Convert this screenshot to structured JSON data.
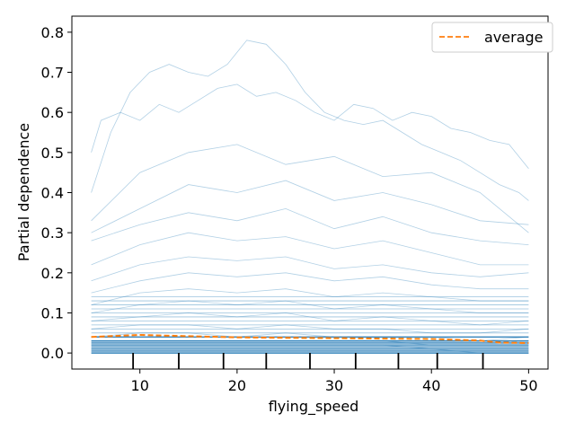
{
  "chart_data": {
    "type": "line",
    "title": "",
    "xlabel": "flying_speed",
    "ylabel": "Partial dependence",
    "xlim": [
      3.0,
      52.0
    ],
    "ylim": [
      -0.04,
      0.84
    ],
    "x_ticks": [
      10,
      20,
      30,
      40,
      50
    ],
    "y_ticks": [
      0.0,
      0.1,
      0.2,
      0.3,
      0.4,
      0.5,
      0.6,
      0.7,
      0.8
    ],
    "grid": false,
    "legend": {
      "position": "upper right",
      "entries": [
        "average"
      ]
    },
    "colors": {
      "ice": "#1f77b4",
      "average": "#ff7f0e",
      "axes": "#000000"
    },
    "rug_x": [
      9.3,
      14.0,
      18.6,
      23.0,
      27.5,
      32.2,
      36.6,
      40.6,
      45.3
    ],
    "series": [
      {
        "name": "average",
        "style": "dashed",
        "x": [
          5,
          10,
          15,
          20,
          25,
          30,
          35,
          40,
          45,
          47,
          50
        ],
        "values": [
          0.04,
          0.045,
          0.042,
          0.039,
          0.038,
          0.037,
          0.036,
          0.035,
          0.031,
          0.026,
          0.025
        ]
      }
    ],
    "ice_curves": [
      {
        "x": [
          5,
          6,
          8,
          10,
          12,
          14,
          16,
          18,
          20,
          22,
          24,
          26,
          28,
          30,
          32,
          34,
          36,
          38,
          40,
          42,
          44,
          46,
          48,
          50
        ],
        "values": [
          0.5,
          0.58,
          0.6,
          0.58,
          0.62,
          0.6,
          0.63,
          0.66,
          0.67,
          0.64,
          0.65,
          0.63,
          0.6,
          0.58,
          0.62,
          0.61,
          0.58,
          0.6,
          0.59,
          0.56,
          0.55,
          0.53,
          0.52,
          0.46
        ]
      },
      {
        "x": [
          5,
          7,
          9,
          11,
          13,
          15,
          17,
          19,
          21,
          23,
          25,
          27,
          29,
          31,
          33,
          35,
          37,
          39,
          41,
          43,
          45,
          47,
          49,
          50
        ],
        "values": [
          0.4,
          0.55,
          0.65,
          0.7,
          0.72,
          0.7,
          0.69,
          0.72,
          0.78,
          0.77,
          0.72,
          0.65,
          0.6,
          0.58,
          0.57,
          0.58,
          0.55,
          0.52,
          0.5,
          0.48,
          0.45,
          0.42,
          0.4,
          0.38
        ]
      },
      {
        "x": [
          5,
          10,
          15,
          20,
          25,
          30,
          35,
          40,
          45,
          50
        ],
        "values": [
          0.33,
          0.45,
          0.5,
          0.52,
          0.47,
          0.49,
          0.44,
          0.45,
          0.4,
          0.3
        ]
      },
      {
        "x": [
          5,
          10,
          15,
          20,
          25,
          30,
          35,
          40,
          45,
          50
        ],
        "values": [
          0.3,
          0.36,
          0.42,
          0.4,
          0.43,
          0.38,
          0.4,
          0.37,
          0.33,
          0.32
        ]
      },
      {
        "x": [
          5,
          10,
          15,
          20,
          25,
          30,
          35,
          40,
          45,
          50
        ],
        "values": [
          0.28,
          0.32,
          0.35,
          0.33,
          0.36,
          0.31,
          0.34,
          0.3,
          0.28,
          0.27
        ]
      },
      {
        "x": [
          5,
          10,
          15,
          20,
          25,
          30,
          35,
          40,
          45,
          50
        ],
        "values": [
          0.22,
          0.27,
          0.3,
          0.28,
          0.29,
          0.26,
          0.28,
          0.25,
          0.22,
          0.22
        ]
      },
      {
        "x": [
          5,
          10,
          15,
          20,
          25,
          30,
          35,
          40,
          45,
          50
        ],
        "values": [
          0.18,
          0.22,
          0.24,
          0.23,
          0.24,
          0.21,
          0.22,
          0.2,
          0.19,
          0.2
        ]
      },
      {
        "x": [
          5,
          10,
          15,
          20,
          25,
          30,
          35,
          40,
          45,
          50
        ],
        "values": [
          0.15,
          0.18,
          0.2,
          0.19,
          0.2,
          0.18,
          0.19,
          0.17,
          0.16,
          0.16
        ]
      },
      {
        "x": [
          5,
          10,
          15,
          20,
          25,
          30,
          35,
          40,
          45,
          50
        ],
        "values": [
          0.12,
          0.15,
          0.16,
          0.15,
          0.16,
          0.14,
          0.15,
          0.14,
          0.13,
          0.13
        ]
      },
      {
        "x": [
          5,
          10,
          15,
          20,
          25,
          30,
          35,
          40,
          45,
          50
        ],
        "values": [
          0.1,
          0.12,
          0.13,
          0.12,
          0.13,
          0.11,
          0.12,
          0.11,
          0.1,
          0.1
        ]
      },
      {
        "x": [
          5,
          10,
          15,
          20,
          25,
          30,
          35,
          40,
          45,
          50
        ],
        "values": [
          0.08,
          0.09,
          0.1,
          0.09,
          0.1,
          0.08,
          0.09,
          0.08,
          0.07,
          0.08
        ]
      },
      {
        "x": [
          5,
          10,
          15,
          20,
          25,
          30,
          35,
          40,
          45,
          50
        ],
        "values": [
          0.06,
          0.07,
          0.07,
          0.06,
          0.07,
          0.06,
          0.06,
          0.05,
          0.05,
          0.06
        ]
      },
      {
        "x": [
          5,
          10,
          15,
          20,
          25,
          30,
          35,
          40,
          45,
          50
        ],
        "values": [
          0.04,
          0.05,
          0.05,
          0.04,
          0.05,
          0.04,
          0.04,
          0.04,
          0.03,
          0.04
        ]
      },
      {
        "x": [
          5,
          10,
          15,
          20,
          25,
          30,
          35,
          40,
          45,
          50
        ],
        "values": [
          0.03,
          0.03,
          0.03,
          0.03,
          0.03,
          0.03,
          0.03,
          0.02,
          0.02,
          0.02
        ]
      },
      {
        "x": [
          5,
          10,
          15,
          20,
          25,
          30,
          35,
          40,
          45,
          50
        ],
        "values": [
          0.02,
          0.02,
          0.02,
          0.02,
          0.02,
          0.02,
          0.02,
          0.01,
          0.01,
          0.01
        ]
      },
      {
        "x": [
          5,
          10,
          15,
          20,
          25,
          30,
          35,
          40,
          45,
          50
        ],
        "values": [
          0.01,
          0.01,
          0.01,
          0.01,
          0.01,
          0.01,
          0.01,
          0.01,
          0.0,
          0.0
        ]
      },
      {
        "x": [
          5,
          10,
          15,
          20,
          25,
          30,
          35,
          40,
          45,
          50
        ],
        "values": [
          0.0,
          0.0,
          0.0,
          0.0,
          0.0,
          0.0,
          0.0,
          0.0,
          0.0,
          0.0
        ]
      }
    ]
  }
}
